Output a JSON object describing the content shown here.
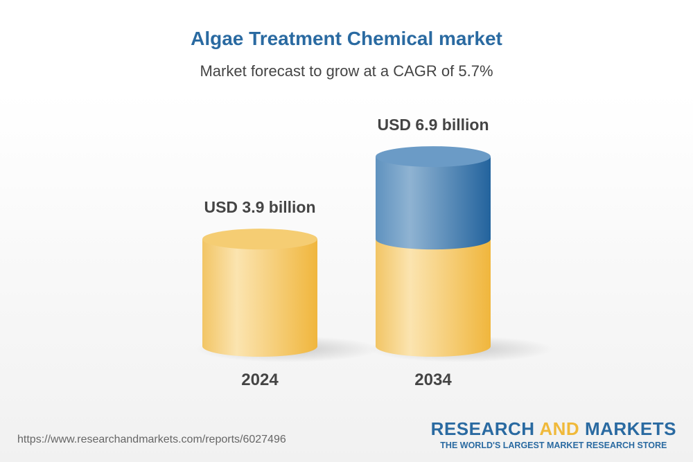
{
  "title": "Algae Treatment Chemical market",
  "subtitle": "Market forecast to grow at a CAGR of 5.7%",
  "chart_data": {
    "type": "bar",
    "style": "3d-cylinder",
    "categories": [
      "2024",
      "2034"
    ],
    "values": [
      3.9,
      6.9
    ],
    "unit": "USD billion",
    "data_labels": [
      "USD 3.9 billion",
      "USD 6.9 billion"
    ],
    "colors": {
      "base": "#f2c15a",
      "growth": "#2e6da4"
    }
  },
  "footer": {
    "url": "https://www.researchandmarkets.com/reports/6027496",
    "logo_research": "RESEARCH",
    "logo_and": "AND",
    "logo_markets": "MARKETS",
    "logo_tagline": "THE WORLD'S LARGEST MARKET RESEARCH STORE"
  }
}
